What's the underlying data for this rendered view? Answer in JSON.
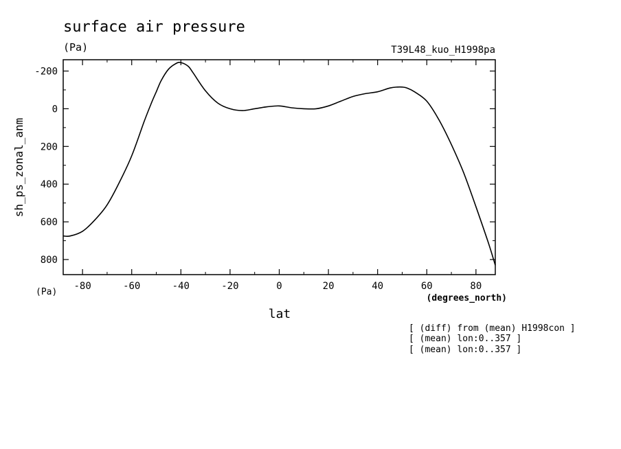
{
  "chart_data": {
    "type": "line",
    "title": "surface air pressure",
    "title_units": "(Pa)",
    "experiment": "T39L48_kuo_H1998pa",
    "ylabel": "sh_ps_zonal_anm",
    "y_units": "(Pa)",
    "xlabel": "lat",
    "x_units": "(degrees_north)",
    "xlim": [
      -87.86,
      87.86
    ],
    "ylim": [
      880,
      -260
    ],
    "y_inverted": true,
    "x_ticks": [
      -80,
      -60,
      -40,
      -20,
      0,
      20,
      40,
      60,
      80
    ],
    "x_tick_labels": [
      "-80",
      "-60",
      "-40",
      "-20",
      "0",
      "20",
      "40",
      "60",
      "80"
    ],
    "y_ticks": [
      -200,
      0,
      200,
      400,
      600,
      800
    ],
    "y_tick_labels": [
      "-200",
      "0",
      "200",
      "400",
      "600",
      "800"
    ],
    "grid": false,
    "series": [
      {
        "x": [
          -87.86,
          -85,
          -80,
          -75,
          -70,
          -65,
          -60,
          -55,
          -52,
          -50,
          -48,
          -45,
          -42,
          -40,
          -37,
          -35,
          -30,
          -25,
          -20,
          -15,
          -10,
          -5,
          0,
          5,
          10,
          15,
          20,
          25,
          30,
          35,
          40,
          45,
          48,
          50,
          52,
          55,
          60,
          65,
          70,
          75,
          80,
          85,
          87.86
        ],
        "y": [
          675,
          675,
          650,
          590,
          510,
          390,
          250,
          70,
          -30,
          -90,
          -150,
          -210,
          -240,
          -245,
          -225,
          -190,
          -95,
          -30,
          0,
          10,
          0,
          -10,
          -15,
          -5,
          0,
          0,
          -15,
          -40,
          -65,
          -80,
          -90,
          -110,
          -115,
          -115,
          -110,
          -90,
          -40,
          60,
          190,
          340,
          520,
          710,
          830
        ]
      }
    ],
    "annotations": [
      "[ (diff) from (mean) H1998con ]",
      "[ (mean) lon:0..357 ]",
      "[ (mean) lon:0..357 ]"
    ]
  }
}
